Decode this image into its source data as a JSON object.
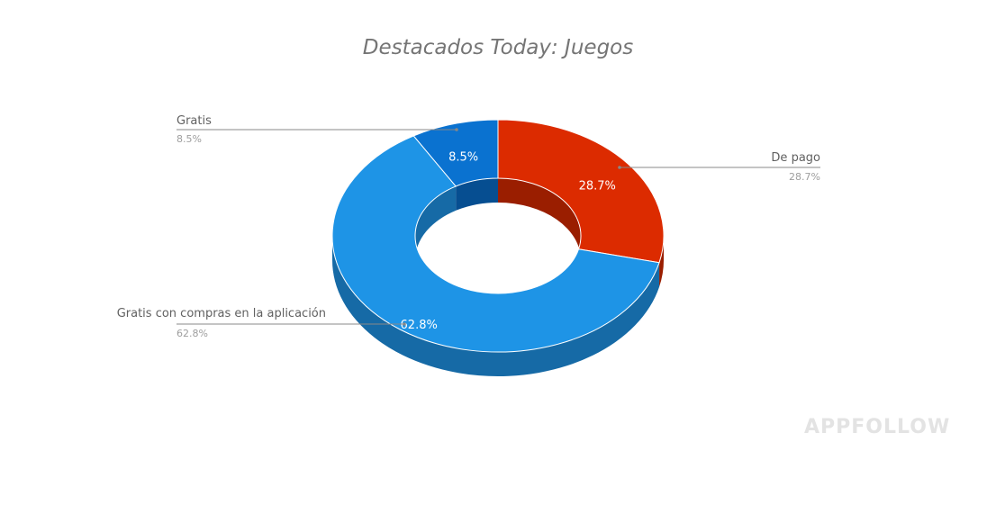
{
  "chart_data": {
    "type": "pie",
    "variant": "3d-donut",
    "title": "Destacados Today: Juegos",
    "slices": [
      {
        "label": "De pago",
        "value": 28.7,
        "display": "28.7%",
        "color": "#dc2b00",
        "side_color": "#9a1e00"
      },
      {
        "label": "Gratis con compras en la aplicación",
        "value": 62.8,
        "display": "62.8%",
        "color": "#1e94e6",
        "side_color": "#166aa6"
      },
      {
        "label": "Gratis",
        "value": 8.5,
        "display": "8.5%",
        "color": "#0a72d0",
        "side_color": "#064e91"
      }
    ],
    "legend": "callout labels with leader lines"
  },
  "watermark": "APPFOLLOW"
}
